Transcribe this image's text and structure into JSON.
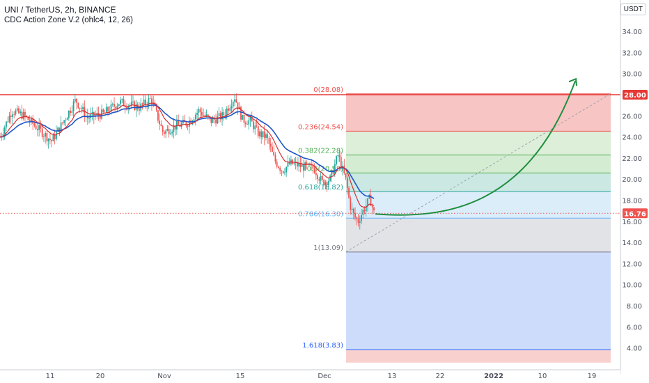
{
  "header": {
    "title": "UNI / TetherUS, 2h, BINANCE",
    "indicator": "CDC Action Zone V.2 (ohlc4, 12, 26)",
    "currency": "USDT"
  },
  "colors": {
    "up": "#26a69a",
    "down": "#ef5350",
    "ma_fast": "#d32f2f",
    "ma_slow": "#1e56c8",
    "resistance": "#e53935",
    "projection": "#1e8e3e",
    "trend": "#9aa3ad",
    "price_tag": "#ef5350"
  },
  "chart_data": {
    "type": "candlestick",
    "symbol": "UNI / TetherUS",
    "interval": "2h",
    "exchange": "BINANCE",
    "y_axis": {
      "ticks": [
        "34.00",
        "32.00",
        "30.00",
        "28.00",
        "26.00",
        "24.00",
        "22.00",
        "20.00",
        "18.00",
        "16.00",
        "14.00",
        "12.00",
        "10.00",
        "8.00",
        "6.00",
        "4.00"
      ],
      "ylim": [
        2.6,
        36.0
      ]
    },
    "x_axis": {
      "labels": [
        "11",
        "20",
        "Nov",
        "15",
        "Dec",
        "13",
        "22",
        "2022",
        "10",
        "19"
      ],
      "bold": [
        "2022"
      ]
    },
    "price_path": [
      [
        0,
        24.0
      ],
      [
        3,
        26.5
      ],
      [
        6,
        26.0
      ],
      [
        9,
        25.0
      ],
      [
        13,
        23.6
      ],
      [
        16,
        25.5
      ],
      [
        19,
        27.5
      ],
      [
        22,
        25.8
      ],
      [
        26,
        26.2
      ],
      [
        30,
        27.3
      ],
      [
        35,
        26.8
      ],
      [
        38,
        27.6
      ],
      [
        41,
        24.4
      ],
      [
        44,
        25.0
      ],
      [
        47,
        25.3
      ],
      [
        50,
        26.5
      ],
      [
        53,
        25.5
      ],
      [
        56,
        26.0
      ],
      [
        59,
        27.8
      ],
      [
        61,
        25.6
      ],
      [
        63,
        25.5
      ],
      [
        65,
        24.3
      ],
      [
        67,
        24.0
      ],
      [
        69,
        21.8
      ],
      [
        71,
        20.8
      ],
      [
        73,
        21.5
      ],
      [
        76,
        21.2
      ],
      [
        79,
        21.0
      ],
      [
        81,
        19.7
      ],
      [
        83,
        20.0
      ],
      [
        85,
        22.3
      ],
      [
        87,
        19.8
      ],
      [
        88,
        17.5
      ],
      [
        89,
        16.5
      ],
      [
        90,
        16.0
      ],
      [
        91,
        16.8
      ],
      [
        92,
        17.5
      ],
      [
        93,
        18.2
      ],
      [
        94,
        16.8
      ]
    ],
    "fib_levels": [
      {
        "label": "0(28.08)",
        "ratio": "0",
        "price": 28.08,
        "color": "#ef5350"
      },
      {
        "label": "0.236(24.54)",
        "ratio": "0.236",
        "price": 24.54,
        "color": "#ef5350"
      },
      {
        "label": "0.382(22.28)",
        "ratio": "0.382",
        "price": 22.28,
        "color": "#4caf50"
      },
      {
        "label": "0.5(20.58)",
        "ratio": "0.5",
        "price": 20.58,
        "color": "#4caf50"
      },
      {
        "label": "0.618(18.82)",
        "ratio": "0.618",
        "price": 18.82,
        "color": "#26a69a"
      },
      {
        "label": "0.786(16.30)",
        "ratio": "0.786",
        "price": 16.3,
        "color": "#64b5f6"
      },
      {
        "label": "1(13.09)",
        "ratio": "1",
        "price": 13.09,
        "color": "#787b86"
      },
      {
        "label": "1.618(3.83)",
        "ratio": "1.618",
        "price": 3.83,
        "color": "#2962ff"
      }
    ],
    "fib_zones": [
      {
        "from": 28.08,
        "to": 24.54,
        "color": "#f7c5c3"
      },
      {
        "from": 24.54,
        "to": 22.28,
        "color": "#ddefd8"
      },
      {
        "from": 22.28,
        "to": 20.58,
        "color": "#d4ecd2"
      },
      {
        "from": 20.58,
        "to": 18.82,
        "color": "#cbe8e2"
      },
      {
        "from": 18.82,
        "to": 16.3,
        "color": "#dcedfa"
      },
      {
        "from": 16.3,
        "to": 13.09,
        "color": "#e2e3e6"
      },
      {
        "from": 13.09,
        "to": 3.83,
        "color": "#cddcfb"
      },
      {
        "from": 3.83,
        "to": 2.6,
        "color": "#f8d1cf"
      }
    ],
    "resistance_price": 28.0,
    "last_price": "16.76",
    "last_price_value": 16.76,
    "resistance_label": "28.00",
    "projection": {
      "from_price": 16.7,
      "to_price": 29.3
    },
    "trend_line": {
      "from_price": 13.1,
      "to_price": 28.1
    }
  }
}
